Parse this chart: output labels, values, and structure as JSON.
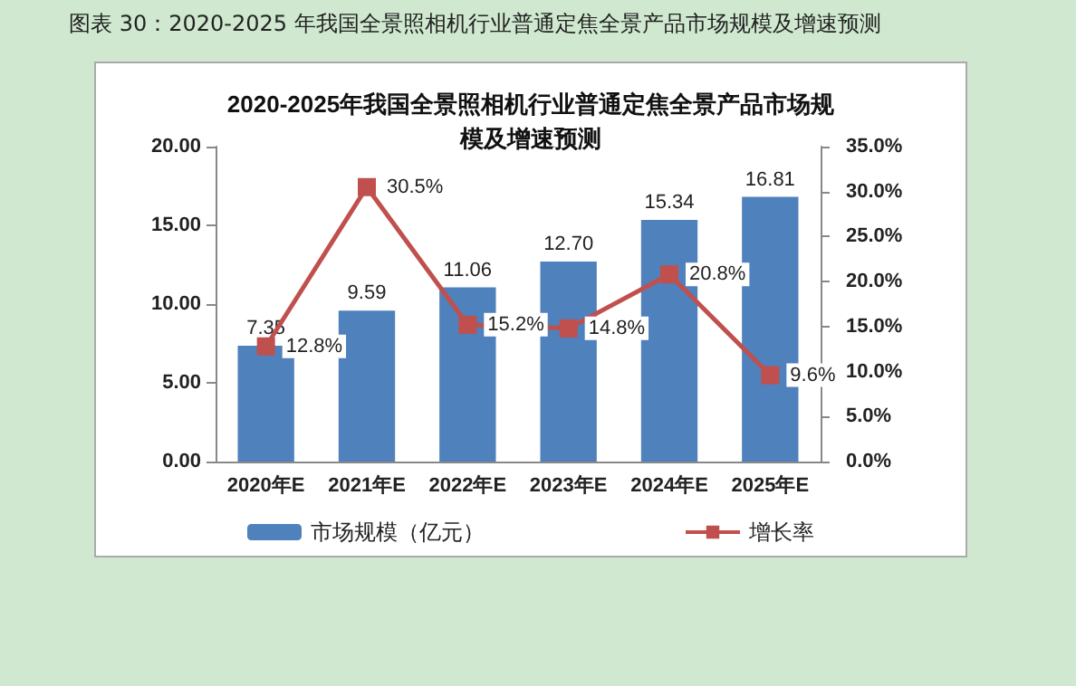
{
  "chart_data": {
    "type": "bar",
    "title": "2020-2025年我国全景照相机行业普通定焦全景产品市场规模及增速预测",
    "annotations": [
      "图表  30：2020-2025 年我国全景照相机行业普通定焦全景产品市场规模及增速预测"
    ],
    "categories": [
      "2020年E",
      "2021年E",
      "2022年E",
      "2023年E",
      "2024年E",
      "2025年E"
    ],
    "series": [
      {
        "name": "市场规模（亿元）",
        "color": "#4f81bd",
        "values": [
          7.35,
          9.59,
          11.06,
          12.7,
          15.34,
          16.81
        ],
        "value_labels": [
          "7.35",
          "9.59",
          "11.06",
          "12.70",
          "15.34",
          "16.81"
        ]
      },
      {
        "name": "增长率",
        "type": "line",
        "axis": "y2",
        "color": "#c0504d",
        "marker": "square",
        "values": [
          12.8,
          30.5,
          15.2,
          14.8,
          20.8,
          9.6
        ],
        "value_labels": [
          "12.8%",
          "30.5%",
          "15.2%",
          "14.8%",
          "20.8%",
          "9.6%"
        ]
      }
    ],
    "ylim": [
      0,
      20
    ],
    "yticks": [
      {
        "value": 0,
        "label": "0.00"
      },
      {
        "value": 5,
        "label": "5.00"
      },
      {
        "value": 10,
        "label": "10.00"
      },
      {
        "value": 15,
        "label": "15.00"
      },
      {
        "value": 20,
        "label": "20.00"
      }
    ],
    "y2lim": [
      0,
      35
    ],
    "y2ticks": [
      {
        "value": 0,
        "label": "0.0%"
      },
      {
        "value": 5,
        "label": "5.0%"
      },
      {
        "value": 10,
        "label": "10.0%"
      },
      {
        "value": 15,
        "label": "15.0%"
      },
      {
        "value": 20,
        "label": "20.0%"
      },
      {
        "value": 25,
        "label": "25.0%"
      },
      {
        "value": 30,
        "label": "30.0%"
      },
      {
        "value": 35,
        "label": "35.0%"
      }
    ],
    "legend": "bottom",
    "grid": false
  }
}
